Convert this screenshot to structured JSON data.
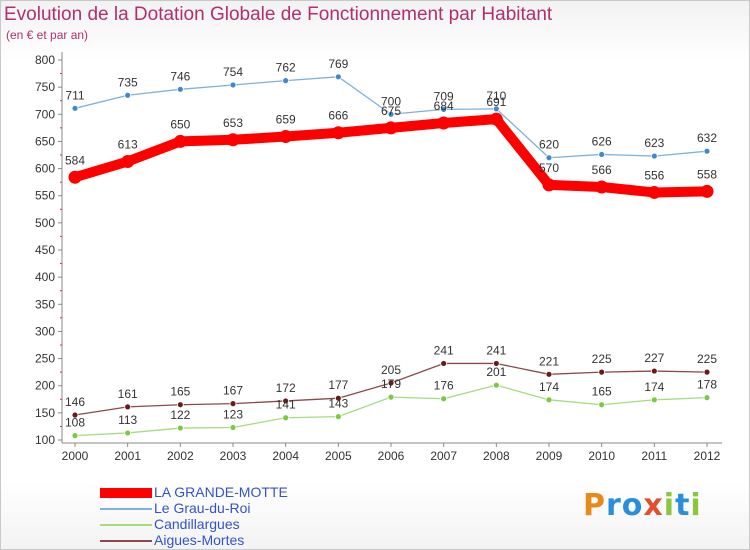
{
  "title": "Evolution de la Dotation Globale de Fonctionnement par Habitant",
  "subtitle": "(en € et par an)",
  "brand": {
    "text": "Proxiti",
    "colors": {
      "p": "#e8891c",
      "r": "#2a8fd8",
      "o": "#2a8fd8",
      "x": "#e14f2c",
      "i": "#8cc63f",
      "t": "#2a8fd8"
    }
  },
  "chart_data": {
    "type": "line",
    "title": "Evolution de la Dotation Globale de Fonctionnement par Habitant",
    "subtitle": "(en € et par an)",
    "xlabel": "",
    "ylabel": "",
    "x": [
      "2000",
      "2001",
      "2002",
      "2003",
      "2004",
      "2005",
      "2006",
      "2007",
      "2008",
      "2009",
      "2010",
      "2011",
      "2012"
    ],
    "ylim": [
      100,
      800
    ],
    "yticks": [
      100,
      150,
      200,
      250,
      300,
      350,
      400,
      450,
      500,
      550,
      600,
      650,
      700,
      750,
      800
    ],
    "grid": false,
    "legend_position": "bottom-left",
    "series": [
      {
        "name": "LA GRANDE-MOTTE",
        "color": "#ff0000",
        "marker": "#ff0000",
        "values": [
          584,
          613,
          650,
          653,
          659,
          666,
          675,
          684,
          691,
          570,
          566,
          556,
          558
        ],
        "labels": [
          "584",
          "613",
          "650",
          "653",
          "659",
          "666",
          "675",
          "684",
          "691",
          "570",
          "566",
          "556",
          "558"
        ]
      },
      {
        "name": "Le Grau-du-Roi",
        "color": "#7eb1dc",
        "marker": "#3f88cc",
        "values": [
          711,
          735,
          746,
          754,
          762,
          769,
          700,
          709,
          710,
          620,
          626,
          623,
          632
        ],
        "labels": [
          "711",
          "735",
          "746",
          "754",
          "762",
          "769",
          "700",
          "709",
          "710",
          "620",
          "626",
          "623",
          "632"
        ]
      },
      {
        "name": "Candillargues",
        "color": "#a8db7f",
        "marker": "#7ac943",
        "values": [
          108,
          113,
          122,
          123,
          141,
          143,
          179,
          176,
          201,
          174,
          165,
          174,
          178
        ],
        "labels": [
          "108",
          "113",
          "122",
          "123",
          "141",
          "143",
          "179",
          "176",
          "201",
          "174",
          "165",
          "174",
          "178"
        ]
      },
      {
        "name": "Aigues-Mortes",
        "color": "#8b4a4a",
        "marker": "#6b1a1a",
        "values": [
          146,
          161,
          165,
          167,
          172,
          177,
          205,
          241,
          241,
          221,
          225,
          227,
          225
        ],
        "labels": [
          "146",
          "161",
          "165",
          "167",
          "172",
          "177",
          "205",
          "241",
          "241",
          "221",
          "225",
          "227",
          "225"
        ]
      }
    ]
  }
}
